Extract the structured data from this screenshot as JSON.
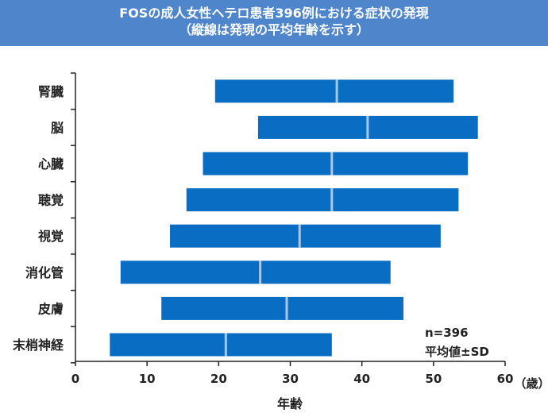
{
  "title": "FOSの成人女性ヘテロ患者396例における症状の発現",
  "subtitle": "（縦線は発現の平均年齢を示す）",
  "chart_data": {
    "type": "bar",
    "orientation": "horizontal-range",
    "categories": [
      "腎臓",
      "脳",
      "心臓",
      "聴覚",
      "視覚",
      "消化管",
      "皮膚",
      "末梢神経"
    ],
    "series": [
      {
        "values": [
          {
            "low": 19.5,
            "mean": 36.5,
            "high": 52.8
          },
          {
            "low": 25.5,
            "mean": 40.8,
            "high": 56.2
          },
          {
            "low": 17.8,
            "mean": 35.8,
            "high": 54.8
          },
          {
            "low": 15.5,
            "mean": 35.8,
            "high": 53.5
          },
          {
            "low": 13.2,
            "mean": 31.3,
            "high": 51.0
          },
          {
            "low": 6.3,
            "mean": 25.8,
            "high": 44.0
          },
          {
            "low": 12.0,
            "mean": 29.5,
            "high": 45.8
          },
          {
            "low": 4.8,
            "mean": 21.0,
            "high": 35.8
          }
        ]
      }
    ],
    "xlim": [
      0,
      60
    ],
    "xticks": [
      0,
      10,
      20,
      30,
      40,
      50,
      60
    ],
    "xticklabels": [
      "0",
      "10",
      "20",
      "30",
      "40",
      "50",
      "60"
    ],
    "xunit": "（歳）",
    "xlabel": "年齢",
    "ylabel": "",
    "grid": false,
    "bar_color": "#0a6dc4",
    "mean_line_color": "#a9c8e8",
    "annotation": [
      "n=396",
      "平均値±SD"
    ]
  }
}
